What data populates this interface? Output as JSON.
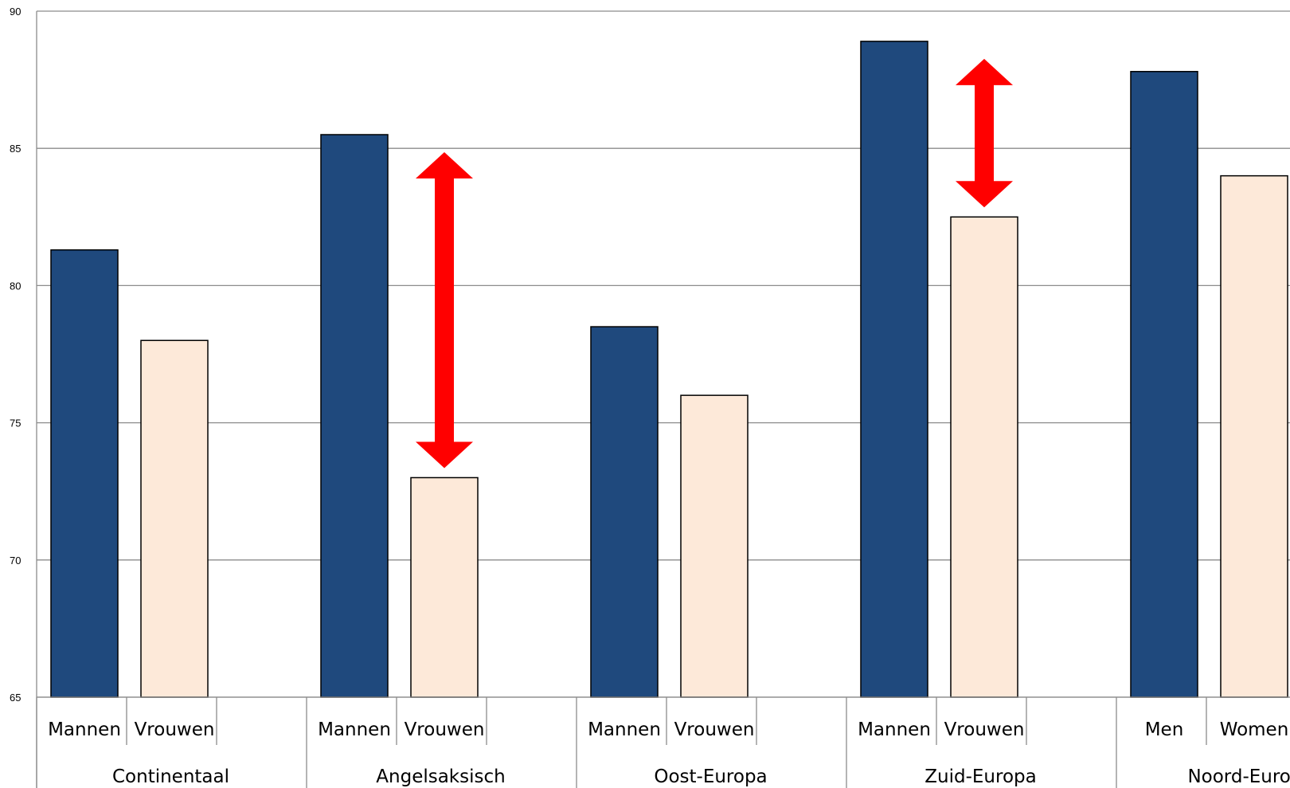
{
  "chart_data": {
    "type": "bar",
    "ylim": [
      65,
      90
    ],
    "yticks": [
      "90",
      "85",
      "80",
      "75",
      "70",
      "65"
    ],
    "grid": true,
    "colors": {
      "men": "#1f497d",
      "women": "#fde9d9",
      "arrow": "#ff0000"
    },
    "groups": [
      {
        "name": "Continentaal",
        "labels": [
          "Mannen",
          "Vrouwen"
        ],
        "values": [
          81.3,
          78.0
        ],
        "gap_arrow": false
      },
      {
        "name": "Angelsaksisch",
        "labels": [
          "Mannen",
          "Vrouwen"
        ],
        "values": [
          85.5,
          73.0
        ],
        "gap_arrow": true
      },
      {
        "name": "Oost-Europa",
        "labels": [
          "Mannen",
          "Vrouwen"
        ],
        "values": [
          78.5,
          76.0
        ],
        "gap_arrow": false
      },
      {
        "name": "Zuid-Europa",
        "labels": [
          "Mannen",
          "Vrouwen"
        ],
        "values": [
          88.9,
          82.5
        ],
        "gap_arrow": true
      },
      {
        "name": "Noord-Europa",
        "labels": [
          "Men",
          "Women"
        ],
        "values": [
          87.8,
          84.0
        ],
        "gap_arrow": false
      }
    ]
  }
}
